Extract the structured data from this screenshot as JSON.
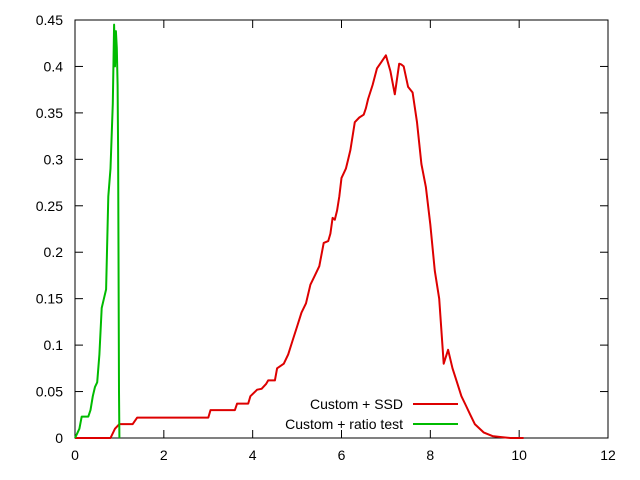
{
  "chart_data": {
    "type": "line",
    "title": "",
    "xlabel": "",
    "ylabel": "",
    "xlim": [
      0,
      12
    ],
    "ylim": [
      0,
      0.45
    ],
    "xticks": [
      0,
      2,
      4,
      6,
      8,
      10,
      12
    ],
    "yticks": [
      0,
      0.05,
      0.1,
      0.15,
      0.2,
      0.25,
      0.3,
      0.35,
      0.4,
      0.45
    ],
    "xtick_labels": [
      "0",
      "2",
      "4",
      "6",
      "8",
      "10",
      "12"
    ],
    "ytick_labels": [
      "0",
      "0.05",
      "0.1",
      "0.15",
      "0.2",
      "0.25",
      "0.3",
      "0.35",
      "0.4",
      "0.45"
    ],
    "grid": false,
    "legend_position": "bottom-right",
    "series": [
      {
        "name": "Custom + SSD",
        "color": "#dd0000",
        "x": [
          0.0,
          0.8,
          0.9,
          1.0,
          1.3,
          1.4,
          3.0,
          3.05,
          3.6,
          3.65,
          3.9,
          3.95,
          4.1,
          4.2,
          4.3,
          4.35,
          4.5,
          4.55,
          4.7,
          4.8,
          4.9,
          5.0,
          5.1,
          5.2,
          5.3,
          5.4,
          5.5,
          5.6,
          5.7,
          5.75,
          5.8,
          5.85,
          5.9,
          5.95,
          6.0,
          6.05,
          6.1,
          6.15,
          6.2,
          6.3,
          6.4,
          6.5,
          6.55,
          6.6,
          6.7,
          6.8,
          6.9,
          7.0,
          7.1,
          7.2,
          7.3,
          7.35,
          7.4,
          7.5,
          7.6,
          7.7,
          7.8,
          7.9,
          8.0,
          8.1,
          8.2,
          8.3,
          8.4,
          8.5,
          8.6,
          8.7,
          8.8,
          8.9,
          9.0,
          9.2,
          9.4,
          9.6,
          9.8,
          10.0,
          10.1
        ],
        "y": [
          0.0,
          0.0,
          0.01,
          0.015,
          0.015,
          0.022,
          0.022,
          0.03,
          0.03,
          0.037,
          0.037,
          0.045,
          0.052,
          0.053,
          0.058,
          0.062,
          0.062,
          0.075,
          0.08,
          0.09,
          0.105,
          0.12,
          0.135,
          0.145,
          0.165,
          0.175,
          0.185,
          0.21,
          0.212,
          0.22,
          0.237,
          0.235,
          0.245,
          0.26,
          0.28,
          0.285,
          0.29,
          0.3,
          0.31,
          0.34,
          0.345,
          0.348,
          0.355,
          0.365,
          0.38,
          0.398,
          0.405,
          0.412,
          0.395,
          0.37,
          0.403,
          0.402,
          0.4,
          0.378,
          0.372,
          0.34,
          0.295,
          0.27,
          0.23,
          0.18,
          0.15,
          0.08,
          0.095,
          0.075,
          0.06,
          0.045,
          0.035,
          0.025,
          0.015,
          0.006,
          0.002,
          0.001,
          0.0,
          0.0,
          0.0
        ]
      },
      {
        "name": "Custom + ratio test",
        "color": "#00bb00",
        "x": [
          0.0,
          0.05,
          0.1,
          0.15,
          0.2,
          0.25,
          0.3,
          0.35,
          0.4,
          0.45,
          0.5,
          0.55,
          0.6,
          0.65,
          0.7,
          0.75,
          0.8,
          0.85,
          0.88,
          0.9,
          0.92,
          0.94,
          0.96,
          0.97,
          0.98,
          0.99,
          1.0
        ],
        "y": [
          0.0,
          0.005,
          0.01,
          0.023,
          0.023,
          0.023,
          0.023,
          0.03,
          0.045,
          0.055,
          0.06,
          0.09,
          0.14,
          0.15,
          0.16,
          0.26,
          0.29,
          0.36,
          0.445,
          0.4,
          0.438,
          0.42,
          0.38,
          0.31,
          0.2,
          0.05,
          0.0
        ]
      }
    ]
  }
}
